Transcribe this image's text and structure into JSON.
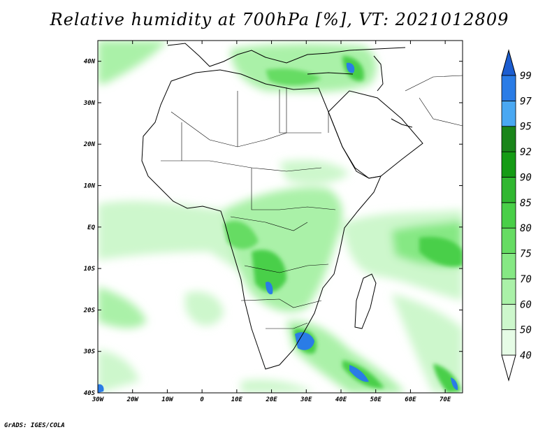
{
  "title": "Relative humidity at 700hPa [%], VT: 2021012809",
  "credit": "GrADS: IGES/COLA",
  "map": {
    "projection": "latlon",
    "lon_range": [
      -30,
      75
    ],
    "lat_range": [
      -40,
      45
    ],
    "lat_ticks": [
      {
        "value": 40,
        "label": "40N"
      },
      {
        "value": 30,
        "label": "30N"
      },
      {
        "value": 20,
        "label": "20N"
      },
      {
        "value": 10,
        "label": "10N"
      },
      {
        "value": 0,
        "label": "EQ"
      },
      {
        "value": -10,
        "label": "10S"
      },
      {
        "value": -20,
        "label": "20S"
      },
      {
        "value": -30,
        "label": "30S"
      },
      {
        "value": -40,
        "label": "40S"
      }
    ],
    "lon_ticks": [
      {
        "value": -30,
        "label": "30W"
      },
      {
        "value": -20,
        "label": "20W"
      },
      {
        "value": -10,
        "label": "10W"
      },
      {
        "value": 0,
        "label": "0"
      },
      {
        "value": 10,
        "label": "10E"
      },
      {
        "value": 20,
        "label": "20E"
      },
      {
        "value": 30,
        "label": "30E"
      },
      {
        "value": 40,
        "label": "40E"
      },
      {
        "value": 50,
        "label": "50E"
      },
      {
        "value": 60,
        "label": "60E"
      },
      {
        "value": 70,
        "label": "70E"
      }
    ]
  },
  "colorbar": {
    "levels": [
      "40",
      "50",
      "60",
      "70",
      "75",
      "80",
      "85",
      "90",
      "92",
      "95",
      "97",
      "99"
    ],
    "colors": [
      "#ffffff",
      "#e6fce6",
      "#cdf7cc",
      "#aaf1a8",
      "#86e884",
      "#66dc63",
      "#49cf48",
      "#31b731",
      "#159b15",
      "#1a851a",
      "#4aa8f2",
      "#2a7ce6",
      "#1c5dd0"
    ],
    "above_color": "#1c5dd0",
    "below_color": "#ffffff"
  }
}
